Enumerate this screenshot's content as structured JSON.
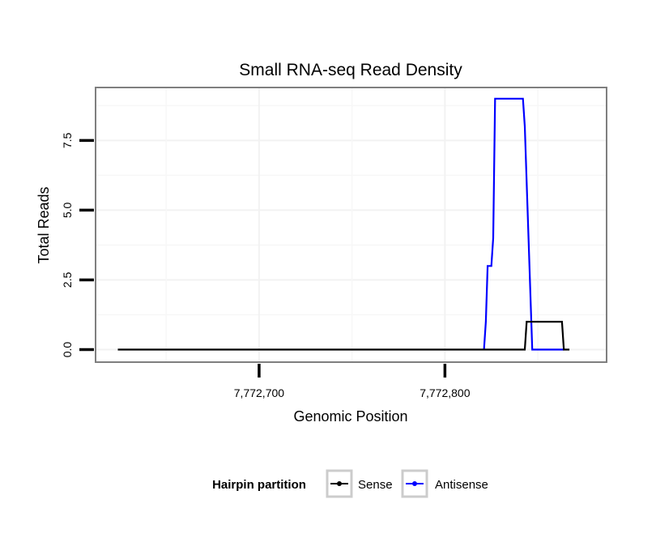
{
  "chart_data": {
    "type": "line",
    "title": "Small RNA-seq Read Density",
    "xlabel": "Genomic Position",
    "ylabel": "Total Reads",
    "xlim": [
      7772612,
      7772887
    ],
    "ylim": [
      -0.45,
      9.4
    ],
    "x_ticks": [
      {
        "value": 7772700,
        "label": "7,772,700"
      },
      {
        "value": 7772800,
        "label": "7,772,800"
      }
    ],
    "y_ticks": [
      {
        "value": 0,
        "label": "0.0"
      },
      {
        "value": 2.5,
        "label": "2.5"
      },
      {
        "value": 5,
        "label": "5.0"
      },
      {
        "value": 7.5,
        "label": "7.5"
      }
    ],
    "grid": true,
    "legend": {
      "title": "Hairpin partition",
      "position": "bottom"
    },
    "series": [
      {
        "name": "Sense",
        "color": "#000000",
        "x": [
          7772624,
          7772843,
          7772844,
          7772863,
          7772864,
          7772867
        ],
        "y": [
          0,
          0,
          1,
          1,
          0,
          0
        ]
      },
      {
        "name": "Antisense",
        "color": "#0000ff",
        "x": [
          7772821,
          7772822,
          7772823,
          7772825,
          7772826,
          7772827,
          7772842,
          7772843,
          7772844,
          7772845,
          7772846,
          7772847,
          7772848,
          7772849,
          7772864
        ],
        "y": [
          0,
          1,
          3,
          3,
          4,
          9,
          9,
          8,
          6,
          4,
          2,
          0,
          0,
          0,
          0
        ]
      }
    ]
  }
}
